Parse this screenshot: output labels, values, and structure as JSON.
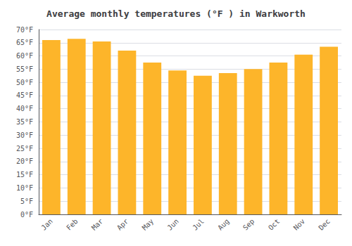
{
  "chart_data": {
    "type": "bar",
    "title": "Average monthly temperatures (°F ) in Warkworth",
    "categories": [
      "Jan",
      "Feb",
      "Mar",
      "Apr",
      "May",
      "Jun",
      "Jul",
      "Aug",
      "Sep",
      "Oct",
      "Nov",
      "Dec"
    ],
    "values": [
      66.0,
      66.5,
      65.5,
      62.0,
      57.5,
      54.5,
      52.5,
      53.5,
      55.0,
      57.5,
      60.5,
      63.5
    ],
    "color": "#FDB52A",
    "ylim": [
      0,
      70
    ],
    "yticks": [
      {
        "value": 0,
        "label": "0°F"
      },
      {
        "value": 5,
        "label": "5°F"
      },
      {
        "value": 10,
        "label": "10°F"
      },
      {
        "value": 15,
        "label": "15°F"
      },
      {
        "value": 20,
        "label": "20°F"
      },
      {
        "value": 25,
        "label": "25°F"
      },
      {
        "value": 30,
        "label": "30°F"
      },
      {
        "value": 35,
        "label": "35°F"
      },
      {
        "value": 40,
        "label": "40°F"
      },
      {
        "value": 45,
        "label": "45°F"
      },
      {
        "value": 50,
        "label": "50°F"
      },
      {
        "value": 55,
        "label": "55°F"
      },
      {
        "value": 60,
        "label": "60°F"
      },
      {
        "value": 65,
        "label": "65°F"
      },
      {
        "value": 70,
        "label": "70°F"
      }
    ],
    "grid": true
  }
}
